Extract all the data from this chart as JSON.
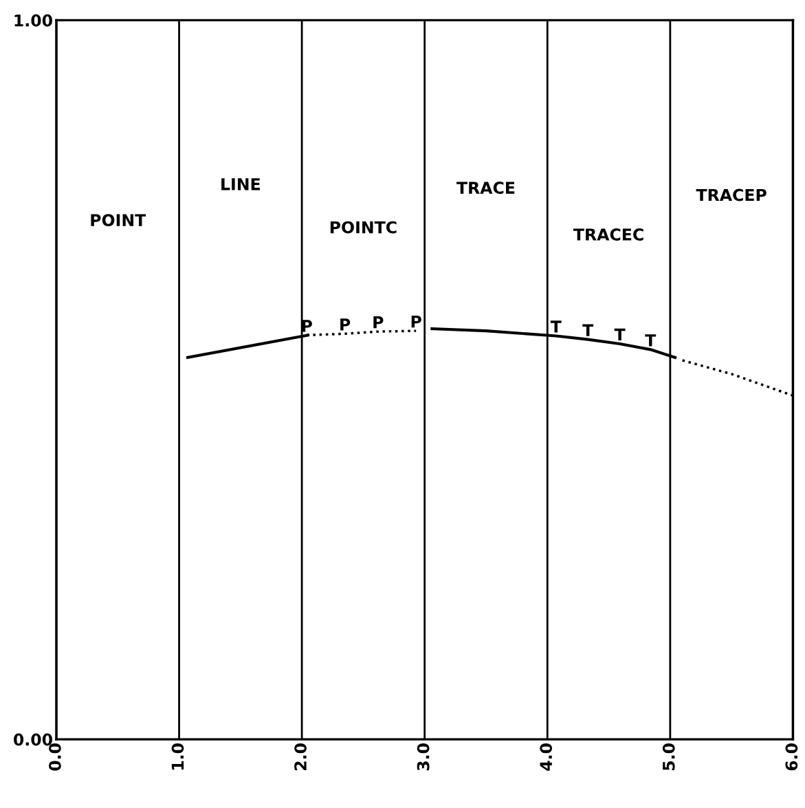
{
  "chart_data": {
    "type": "line",
    "series": [
      {
        "color": "#000000",
        "x": [
          1.07,
          2.05
        ],
        "values": [
          0.531,
          0.562
        ],
        "line_style": "solid",
        "marker": "none"
      },
      {
        "color": "#000000",
        "x": [
          2.04,
          2.35,
          2.62,
          2.93
        ],
        "values": [
          0.562,
          0.564,
          0.567,
          0.568
        ],
        "line_style": "dotted",
        "value_labels": [
          "P",
          "P",
          "P",
          "P"
        ]
      },
      {
        "color": "#000000",
        "x": [
          3.06,
          3.5,
          4.07,
          4.33,
          4.59,
          4.84,
          5.04
        ],
        "values": [
          0.571,
          0.568,
          0.561,
          0.556,
          0.55,
          0.542,
          0.531
        ],
        "line_style": "solid",
        "value_labels": [
          null,
          null,
          "T",
          "T",
          "T",
          "T",
          null
        ]
      },
      {
        "color": "#000000",
        "x": [
          5.1,
          5.5,
          6.0
        ],
        "values": [
          0.527,
          0.508,
          0.478
        ],
        "line_style": "dotted",
        "marker": "none"
      }
    ],
    "annotations": [
      "POINT",
      "LINE",
      "POINTC",
      "TRACE",
      "TRACEC",
      "TRACEP"
    ],
    "xlim": [
      0,
      6
    ],
    "ylim": [
      0,
      1
    ],
    "xticks": [
      {
        "value": 0,
        "label": "0.0"
      },
      {
        "value": 1,
        "label": "1.0"
      },
      {
        "value": 2,
        "label": "2.0"
      },
      {
        "value": 3,
        "label": "3.0"
      },
      {
        "value": 4,
        "label": "4.0"
      },
      {
        "value": 5,
        "label": "5.0"
      },
      {
        "value": 6,
        "label": "6.0"
      }
    ],
    "yticks": [
      {
        "value": 0,
        "label": "0.00"
      },
      {
        "value": 1,
        "label": "1.00"
      }
    ],
    "grid": "x"
  }
}
